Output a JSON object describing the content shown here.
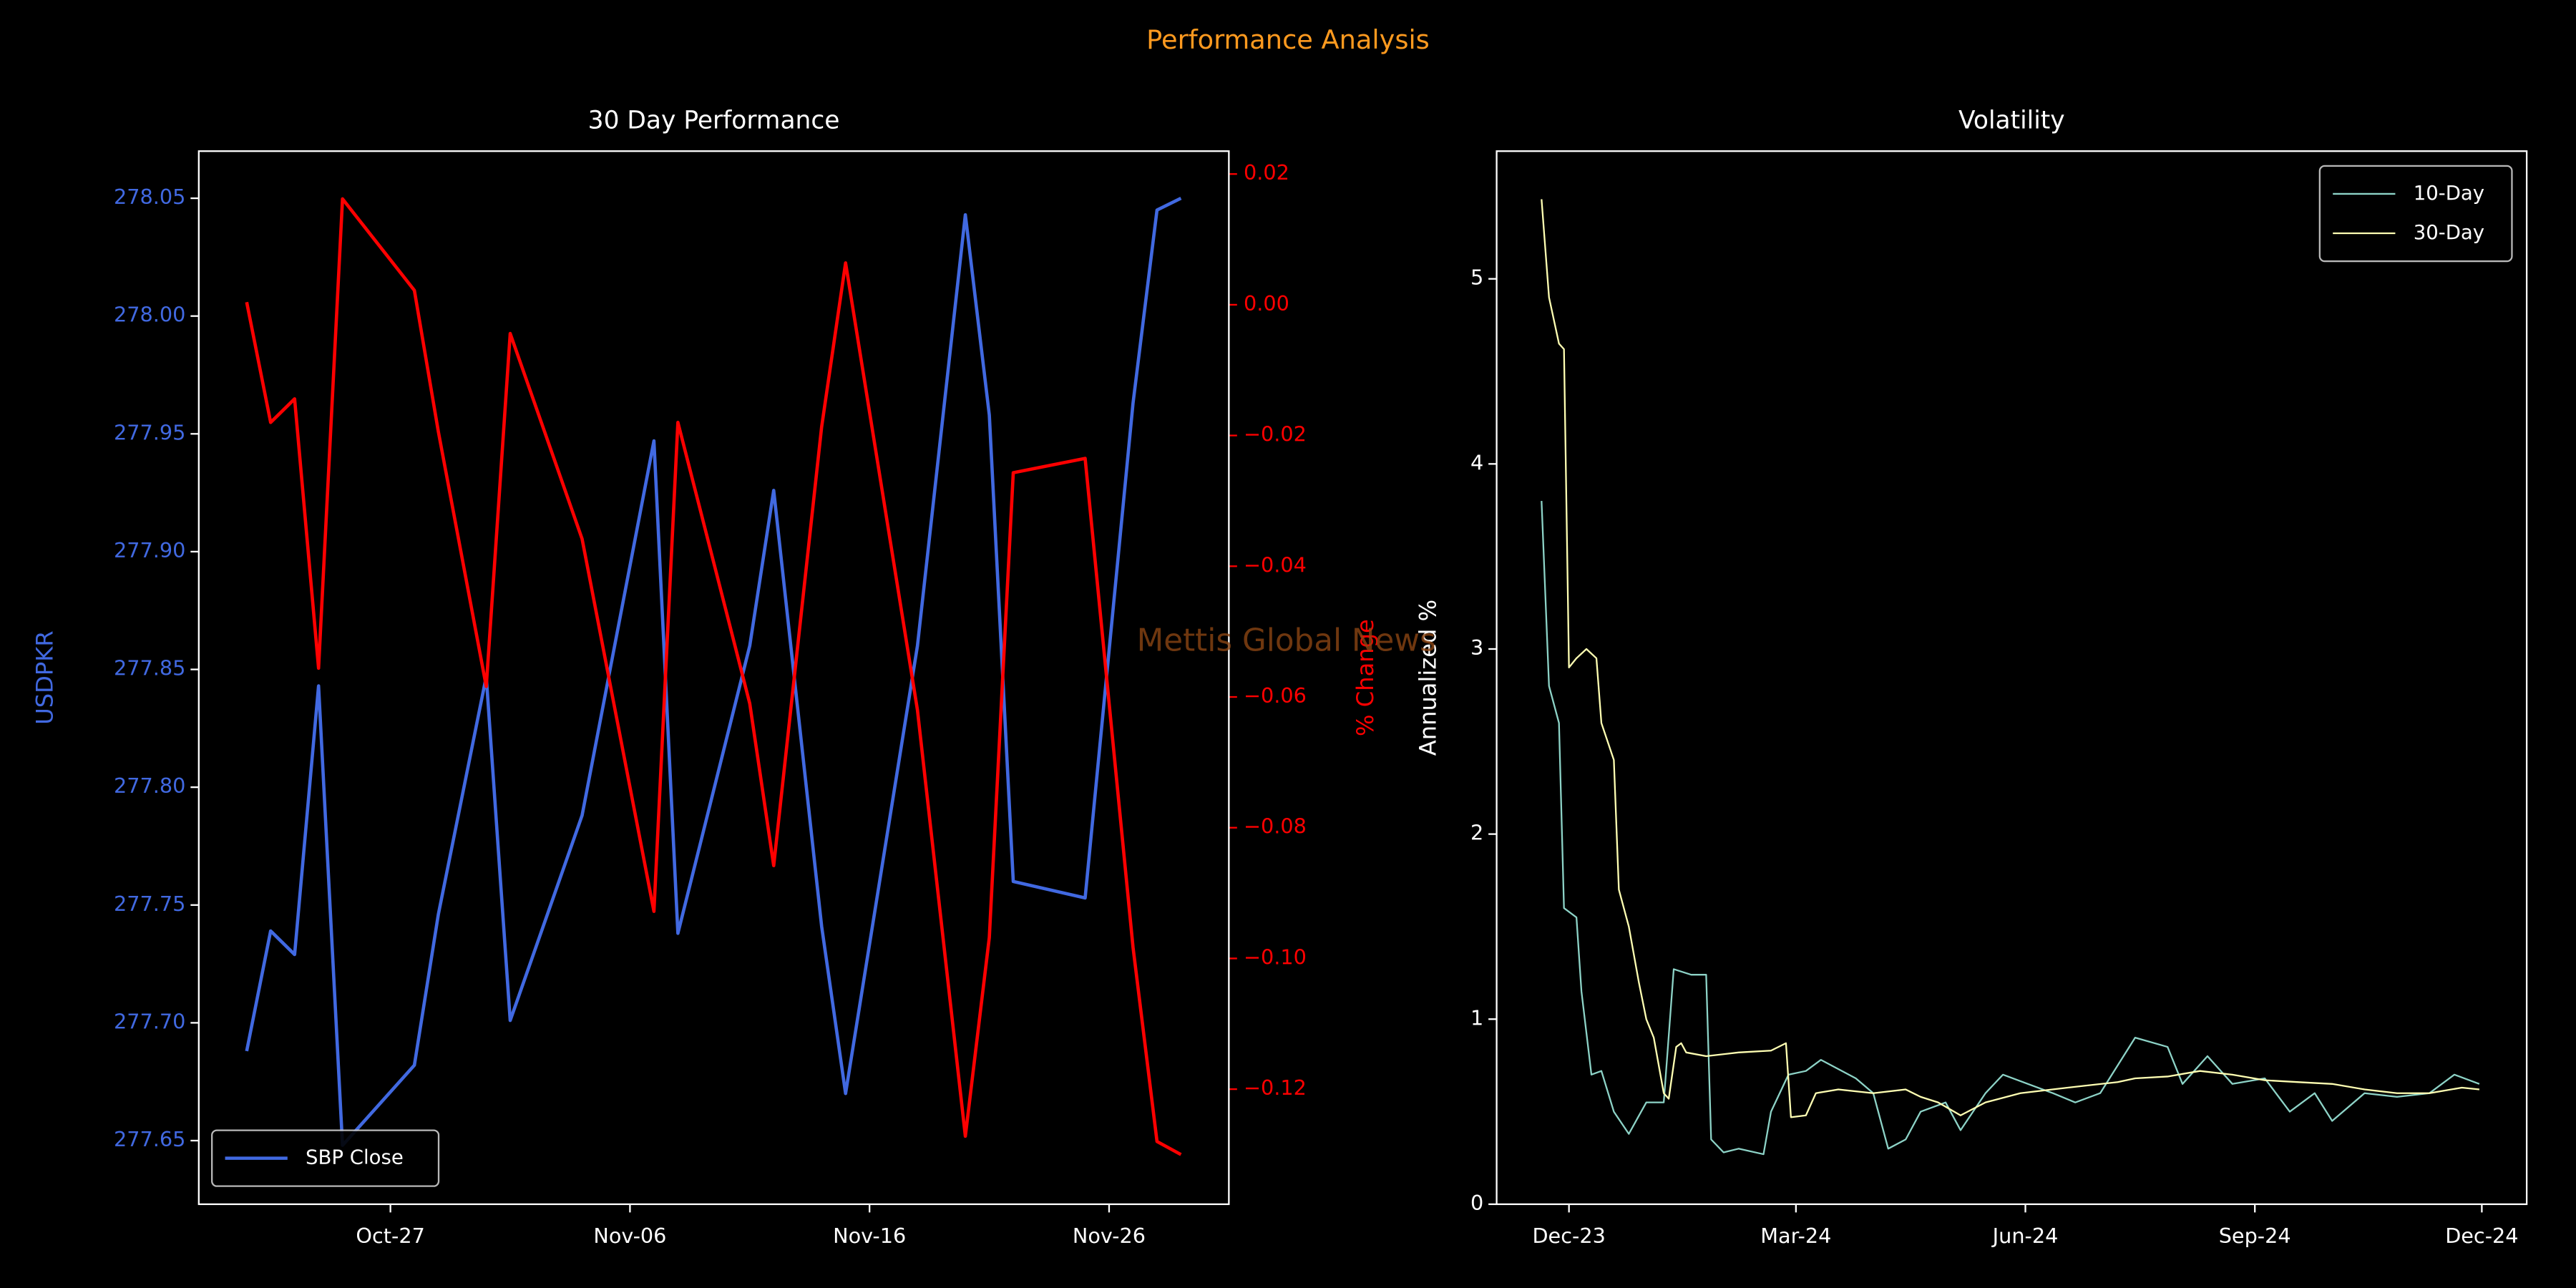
{
  "title": "Performance Analysis",
  "watermark": "Mettis Global News",
  "chart_data": [
    {
      "type": "line",
      "title": "30 Day Performance",
      "ylabel": "USDPKR",
      "y2label": "% Change",
      "x": [
        "Oct-21",
        "Oct-22",
        "Oct-23",
        "Oct-24",
        "Oct-25",
        "Oct-28",
        "Oct-29",
        "Oct-31",
        "Nov-01",
        "Nov-04",
        "Nov-07",
        "Nov-08",
        "Nov-11",
        "Nov-12",
        "Nov-14",
        "Nov-15",
        "Nov-18",
        "Nov-20",
        "Nov-21",
        "Nov-22",
        "Nov-25",
        "Nov-27",
        "Nov-28",
        "Nov-29"
      ],
      "series": [
        {
          "name": "SBP Close",
          "color": "#4169e1",
          "values": [
            277.688,
            277.739,
            277.729,
            277.843,
            277.648,
            277.682,
            277.746,
            277.847,
            277.701,
            277.788,
            277.947,
            277.738,
            277.86,
            277.926,
            277.741,
            277.67,
            277.86,
            278.043,
            277.958,
            277.76,
            277.753,
            277.963,
            278.045,
            278.05
          ]
        },
        {
          "color": "#ff0000",
          "axis": "y2",
          "values": [
            0.0004,
            -0.018,
            -0.0144,
            -0.0556,
            0.0162,
            0.0022,
            -0.0194,
            -0.0584,
            -0.0044,
            -0.0358,
            -0.0928,
            -0.018,
            -0.061,
            -0.0858,
            -0.0187,
            0.0064,
            -0.062,
            -0.1272,
            -0.0968,
            -0.0257,
            -0.0235,
            -0.0983,
            -0.128,
            -0.13
          ]
        }
      ],
      "xlim": [
        "Oct-19",
        "Dec-01"
      ],
      "xticks": [
        "Oct-27",
        "Nov-06",
        "Nov-16",
        "Nov-26"
      ],
      "ylim": [
        277.623,
        278.07
      ],
      "yticks": [
        277.65,
        {
          "value": 277.7,
          "label": "277.70"
        },
        277.75,
        {
          "value": 277.8,
          "label": "277.80"
        },
        277.85,
        {
          "value": 277.9,
          "label": "277.90"
        },
        277.95,
        {
          "value": 278,
          "label": "278.00"
        },
        278.05
      ],
      "y2lim": [
        -0.1376,
        0.0235
      ],
      "y2ticks": [
        {
          "value": -0.12,
          "label": "−0.12"
        },
        {
          "value": -0.1,
          "label": "−0.10"
        },
        {
          "value": -0.08,
          "label": "−0.08"
        },
        {
          "value": -0.06,
          "label": "−0.06"
        },
        {
          "value": -0.04,
          "label": "−0.04"
        },
        {
          "value": -0.02,
          "label": "−0.02"
        },
        {
          "value": 0,
          "label": "0.00"
        },
        {
          "value": 0.02,
          "label": "0.02"
        }
      ],
      "legend": "lower left",
      "grid": false
    },
    {
      "type": "line",
      "title": "Volatility",
      "ylabel": "Annualized %",
      "series": [
        {
          "name": "10-Day",
          "color": "#8dd3c7",
          "x": [
            "2023-11-20",
            "2023-11-23",
            "2023-11-27",
            "2023-11-29",
            "2023-12-04",
            "2023-12-06",
            "2023-12-10",
            "2023-12-14",
            "2023-12-19",
            "2023-12-25",
            "2024-01-01",
            "2024-01-08",
            "2024-01-12",
            "2024-01-19",
            "2024-01-25",
            "2024-01-27",
            "2024-02-01",
            "2024-02-07",
            "2024-02-17",
            "2024-02-20",
            "2024-02-27",
            "2024-03-05",
            "2024-03-11",
            "2024-03-25",
            "2024-04-01",
            "2024-04-07",
            "2024-04-14",
            "2024-04-20",
            "2024-04-30",
            "2024-05-06",
            "2024-05-16",
            "2024-05-23",
            "2024-06-02",
            "2024-06-12",
            "2024-06-21",
            "2024-07-01",
            "2024-07-15",
            "2024-07-28",
            "2024-08-03",
            "2024-08-13",
            "2024-08-23",
            "2024-09-05",
            "2024-09-15",
            "2024-09-25",
            "2024-10-02",
            "2024-10-15",
            "2024-10-28",
            "2024-11-10",
            "2024-11-20",
            "2024-11-30"
          ],
          "values": [
            3.8,
            2.8,
            2.6,
            1.6,
            1.55,
            1.15,
            0.7,
            0.72,
            0.5,
            0.38,
            0.55,
            0.55,
            1.27,
            1.24,
            1.24,
            0.35,
            0.28,
            0.3,
            0.27,
            0.5,
            0.7,
            0.72,
            0.78,
            0.68,
            0.6,
            0.3,
            0.35,
            0.5,
            0.55,
            0.4,
            0.6,
            0.7,
            0.65,
            0.6,
            0.55,
            0.6,
            0.9,
            0.85,
            0.65,
            0.8,
            0.65,
            0.68,
            0.5,
            0.6,
            0.45,
            0.6,
            0.58,
            0.6,
            0.7,
            0.65
          ]
        },
        {
          "name": "30-Day",
          "color": "#ffffb3",
          "x": [
            "2023-11-20",
            "2023-11-23",
            "2023-11-27",
            "2023-11-29",
            "2023-12-01",
            "2023-12-04",
            "2023-12-08",
            "2023-12-12",
            "2023-12-14",
            "2023-12-19",
            "2023-12-21",
            "2023-12-25",
            "2023-12-29",
            "2024-01-01",
            "2024-01-04",
            "2024-01-08",
            "2024-01-10",
            "2024-01-13",
            "2024-01-15",
            "2024-01-17",
            "2024-01-25",
            "2024-02-07",
            "2024-02-20",
            "2024-02-26",
            "2024-02-28",
            "2024-03-05",
            "2024-03-09",
            "2024-03-18",
            "2024-04-01",
            "2024-04-14",
            "2024-04-20",
            "2024-04-27",
            "2024-05-06",
            "2024-05-16",
            "2024-05-30",
            "2024-06-18",
            "2024-07-08",
            "2024-07-15",
            "2024-07-28",
            "2024-08-10",
            "2024-08-23",
            "2024-09-05",
            "2024-09-18",
            "2024-10-02",
            "2024-10-15",
            "2024-10-28",
            "2024-11-10",
            "2024-11-23",
            "2024-11-30"
          ],
          "values": [
            5.43,
            4.9,
            4.65,
            4.62,
            2.9,
            2.95,
            3.0,
            2.95,
            2.6,
            2.4,
            1.7,
            1.5,
            1.2,
            1.0,
            0.9,
            0.6,
            0.57,
            0.85,
            0.87,
            0.82,
            0.8,
            0.82,
            0.83,
            0.87,
            0.47,
            0.48,
            0.6,
            0.62,
            0.6,
            0.62,
            0.58,
            0.55,
            0.48,
            0.55,
            0.6,
            0.63,
            0.66,
            0.68,
            0.69,
            0.72,
            0.7,
            0.67,
            0.66,
            0.65,
            0.62,
            0.6,
            0.6,
            0.63,
            0.62
          ]
        }
      ],
      "xlim": [
        "2023-11-02",
        "2024-12-19"
      ],
      "xticks": [
        {
          "value": "2023-12-01",
          "label": "Dec-23"
        },
        {
          "value": "2024-03-01",
          "label": "Mar-24"
        },
        {
          "value": "2024-06-01",
          "label": "Jun-24"
        },
        {
          "value": "2024-09-01",
          "label": "Sep-24"
        },
        {
          "value": "2024-12-01",
          "label": "Dec-24"
        }
      ],
      "ylim": [
        0,
        5.69
      ],
      "yticks": [
        0,
        1,
        2,
        3,
        4,
        5
      ],
      "legend": "upper right",
      "grid": false
    }
  ]
}
